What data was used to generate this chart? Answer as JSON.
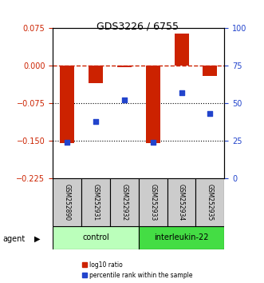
{
  "title": "GDS3226 / 6755",
  "samples": [
    "GSM252890",
    "GSM252931",
    "GSM252932",
    "GSM252933",
    "GSM252934",
    "GSM252935"
  ],
  "log10_ratio": [
    -0.155,
    -0.035,
    -0.003,
    -0.155,
    0.065,
    -0.02
  ],
  "percentile_rank": [
    24,
    38,
    52,
    24,
    57,
    43
  ],
  "ylim_left": [
    -0.225,
    0.075
  ],
  "ylim_right": [
    0,
    100
  ],
  "yticks_left": [
    0.075,
    0,
    -0.075,
    -0.15,
    -0.225
  ],
  "yticks_right": [
    100,
    75,
    50,
    25,
    0
  ],
  "hlines": [
    -0.075,
    -0.15
  ],
  "bar_color": "#cc2200",
  "dot_color": "#2244cc",
  "dashed_line_color": "#cc2200",
  "control_label": "control",
  "treatment_label": "interleukin-22",
  "agent_label": "agent",
  "legend_bar_label": "log10 ratio",
  "legend_dot_label": "percentile rank within the sample",
  "control_color": "#bbffbb",
  "treatment_color": "#44dd44",
  "bar_width": 0.5,
  "sample_box_color": "#cccccc"
}
